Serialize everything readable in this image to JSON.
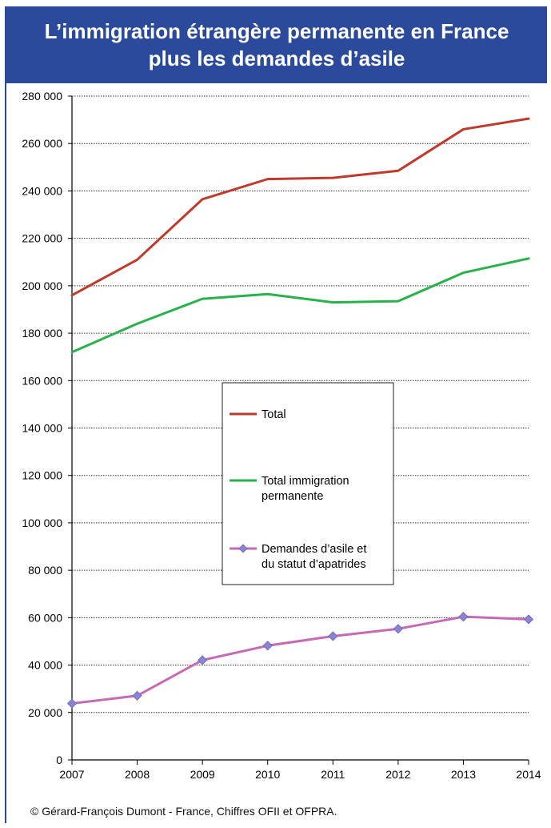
{
  "colors": {
    "header_bg": "#2b4a9b",
    "total": "#c0392b",
    "immigration": "#27b34a",
    "asile": "#c66ab5",
    "asile_marker": "#8a84d6"
  },
  "chart_data": {
    "type": "line",
    "title": "L’immigration étrangère permanente en France plus les demandes d’asile",
    "x": [
      2007,
      2008,
      2009,
      2010,
      2011,
      2012,
      2013,
      2014
    ],
    "xticklabels": [
      "2007",
      "2008",
      "2009",
      "2010",
      "2011",
      "2012",
      "2013",
      "2014"
    ],
    "ylim": [
      0,
      280000
    ],
    "yticks": [
      0,
      20000,
      40000,
      60000,
      80000,
      100000,
      120000,
      140000,
      160000,
      180000,
      200000,
      220000,
      240000,
      260000,
      280000
    ],
    "yticklabels": [
      "0",
      "20 000",
      "40 000",
      "60 000",
      "80 000",
      "100 000",
      "120 000",
      "140 000",
      "160 000",
      "180 000",
      "200 000",
      "220 000",
      "240 000",
      "260 000",
      "280 000"
    ],
    "grid": true,
    "legend_position": "center",
    "series": [
      {
        "name": "Total",
        "color": "#c0392b",
        "marker": "none",
        "values": [
          196000,
          211000,
          236500,
          245000,
          245500,
          248500,
          266000,
          270500
        ]
      },
      {
        "name": "Total immigration permanente",
        "color": "#27b34a",
        "marker": "none",
        "values": [
          172000,
          184000,
          194500,
          196500,
          193000,
          193500,
          205500,
          211500
        ]
      },
      {
        "name": "Demandes d’asile et du statut d’apatrides",
        "color": "#c66ab5",
        "marker": "diamond",
        "values": [
          23800,
          27100,
          42100,
          48200,
          52200,
          55300,
          60400,
          59300
        ]
      }
    ]
  },
  "header": {
    "title_line1": "L’immigration étrangère permanente en France",
    "title_line2": "plus les demandes d’asile"
  },
  "legend": {
    "items": [
      {
        "lines": [
          "Total"
        ]
      },
      {
        "lines": [
          "Total immigration",
          "permanente"
        ]
      },
      {
        "lines": [
          "Demandes d’asile et",
          "du statut d’apatrides"
        ]
      }
    ]
  },
  "footer": {
    "credit": "© Gérard-François Dumont - France, Chiffres OFII et OFPRA."
  }
}
